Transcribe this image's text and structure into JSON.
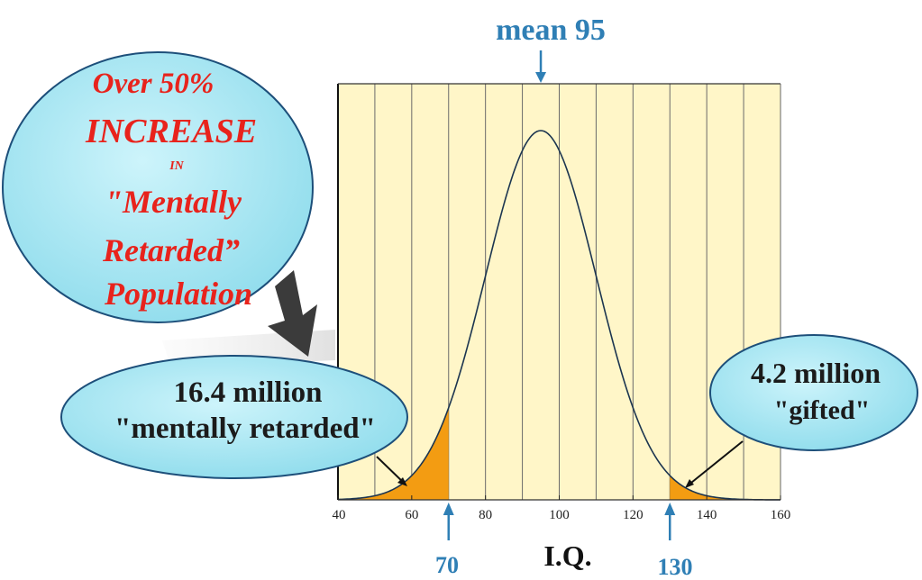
{
  "chart_data": {
    "type": "area",
    "xlabel": "I.Q.",
    "xlim": [
      40,
      160
    ],
    "x_ticks": [
      40,
      60,
      80,
      100,
      120,
      140,
      160
    ],
    "x_gridlines": [
      50,
      60,
      70,
      80,
      90,
      100,
      110,
      120,
      130,
      140,
      150
    ],
    "distribution": "normal",
    "mean": 95,
    "sd": 15,
    "grid": true,
    "shaded_regions": [
      {
        "from": 40,
        "to": 70,
        "color": "#f39c12"
      },
      {
        "from": 130,
        "to": 160,
        "color": "#f39c12"
      }
    ],
    "markers": [
      {
        "x": 95,
        "label": "mean 95",
        "position": "top"
      },
      {
        "x": 70,
        "label": "70",
        "position": "bottom"
      },
      {
        "x": 130,
        "label": "130",
        "position": "bottom"
      }
    ],
    "annotations": [
      {
        "id": "increase",
        "lines": [
          "Over 50%",
          "INCREASE",
          "IN",
          "\"Mentally",
          "Retarded”",
          "Population"
        ]
      },
      {
        "id": "retarded",
        "lines": [
          "16.4 million",
          "\"mentally retarded\""
        ]
      },
      {
        "id": "gifted",
        "lines": [
          "4.2 million",
          "\"gifted\""
        ]
      }
    ],
    "colors": {
      "plot_background": "#fff6c8",
      "curve": "#1c3550",
      "shade": "#f39c12",
      "bubble_fill": "#a6e8f3",
      "bubble_stroke": "#1d4f7a",
      "marker": "#2f7fb5",
      "red_text": "#e8231c"
    }
  }
}
